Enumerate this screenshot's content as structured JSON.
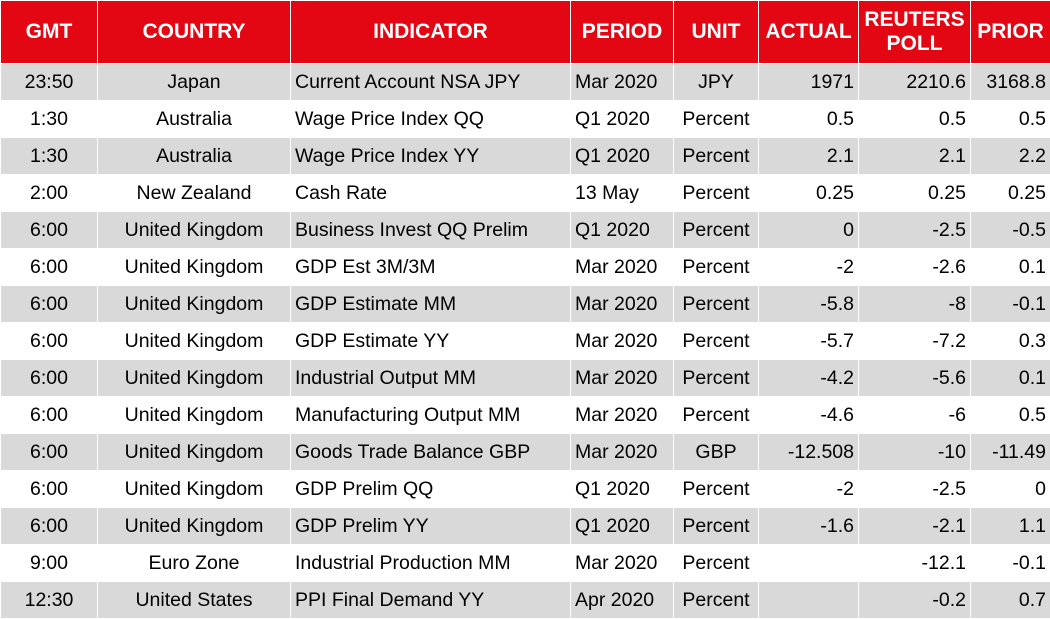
{
  "table": {
    "header": [
      "GMT",
      "COUNTRY",
      "INDICATOR",
      "PERIOD",
      "UNIT",
      "ACTUAL",
      "REUTERS POLL",
      "PRIOR"
    ],
    "rows": [
      [
        "23:50",
        "Japan",
        "Current Account NSA JPY",
        "Mar 2020",
        "JPY",
        "1971",
        "2210.6",
        "3168.8"
      ],
      [
        "1:30",
        "Australia",
        "Wage Price Index QQ",
        "Q1 2020",
        "Percent",
        "0.5",
        "0.5",
        "0.5"
      ],
      [
        "1:30",
        "Australia",
        "Wage Price Index YY",
        "Q1 2020",
        "Percent",
        "2.1",
        "2.1",
        "2.2"
      ],
      [
        "2:00",
        "New Zealand",
        "Cash Rate",
        "13 May",
        "Percent",
        "0.25",
        "0.25",
        "0.25"
      ],
      [
        "6:00",
        "United Kingdom",
        "Business Invest QQ Prelim",
        "Q1 2020",
        "Percent",
        "0",
        "-2.5",
        "-0.5"
      ],
      [
        "6:00",
        "United Kingdom",
        "GDP Est 3M/3M",
        "Mar 2020",
        "Percent",
        "-2",
        "-2.6",
        "0.1"
      ],
      [
        "6:00",
        "United Kingdom",
        "GDP Estimate MM",
        "Mar 2020",
        "Percent",
        "-5.8",
        "-8",
        "-0.1"
      ],
      [
        "6:00",
        "United Kingdom",
        "GDP Estimate YY",
        "Mar 2020",
        "Percent",
        "-5.7",
        "-7.2",
        "0.3"
      ],
      [
        "6:00",
        "United Kingdom",
        "Industrial Output MM",
        "Mar 2020",
        "Percent",
        "-4.2",
        "-5.6",
        "0.1"
      ],
      [
        "6:00",
        "United Kingdom",
        "Manufacturing Output MM",
        "Mar 2020",
        "Percent",
        "-4.6",
        "-6",
        "0.5"
      ],
      [
        "6:00",
        "United Kingdom",
        "Goods Trade Balance GBP",
        "Mar 2020",
        "GBP",
        "-12.508",
        "-10",
        "-11.49"
      ],
      [
        "6:00",
        "United Kingdom",
        "GDP Prelim QQ",
        "Q1 2020",
        "Percent",
        "-2",
        "-2.5",
        "0"
      ],
      [
        "6:00",
        "United Kingdom",
        "GDP Prelim YY",
        "Q1 2020",
        "Percent",
        "-1.6",
        "-2.1",
        "1.1"
      ],
      [
        "9:00",
        "Euro Zone",
        "Industrial Production MM",
        "Mar 2020",
        "Percent",
        null,
        "-12.1",
        "-0.1"
      ],
      [
        "12:30",
        "United States",
        "PPI Final Demand YY",
        "Apr 2020",
        "Percent",
        null,
        "-0.2",
        "0.7"
      ]
    ]
  }
}
